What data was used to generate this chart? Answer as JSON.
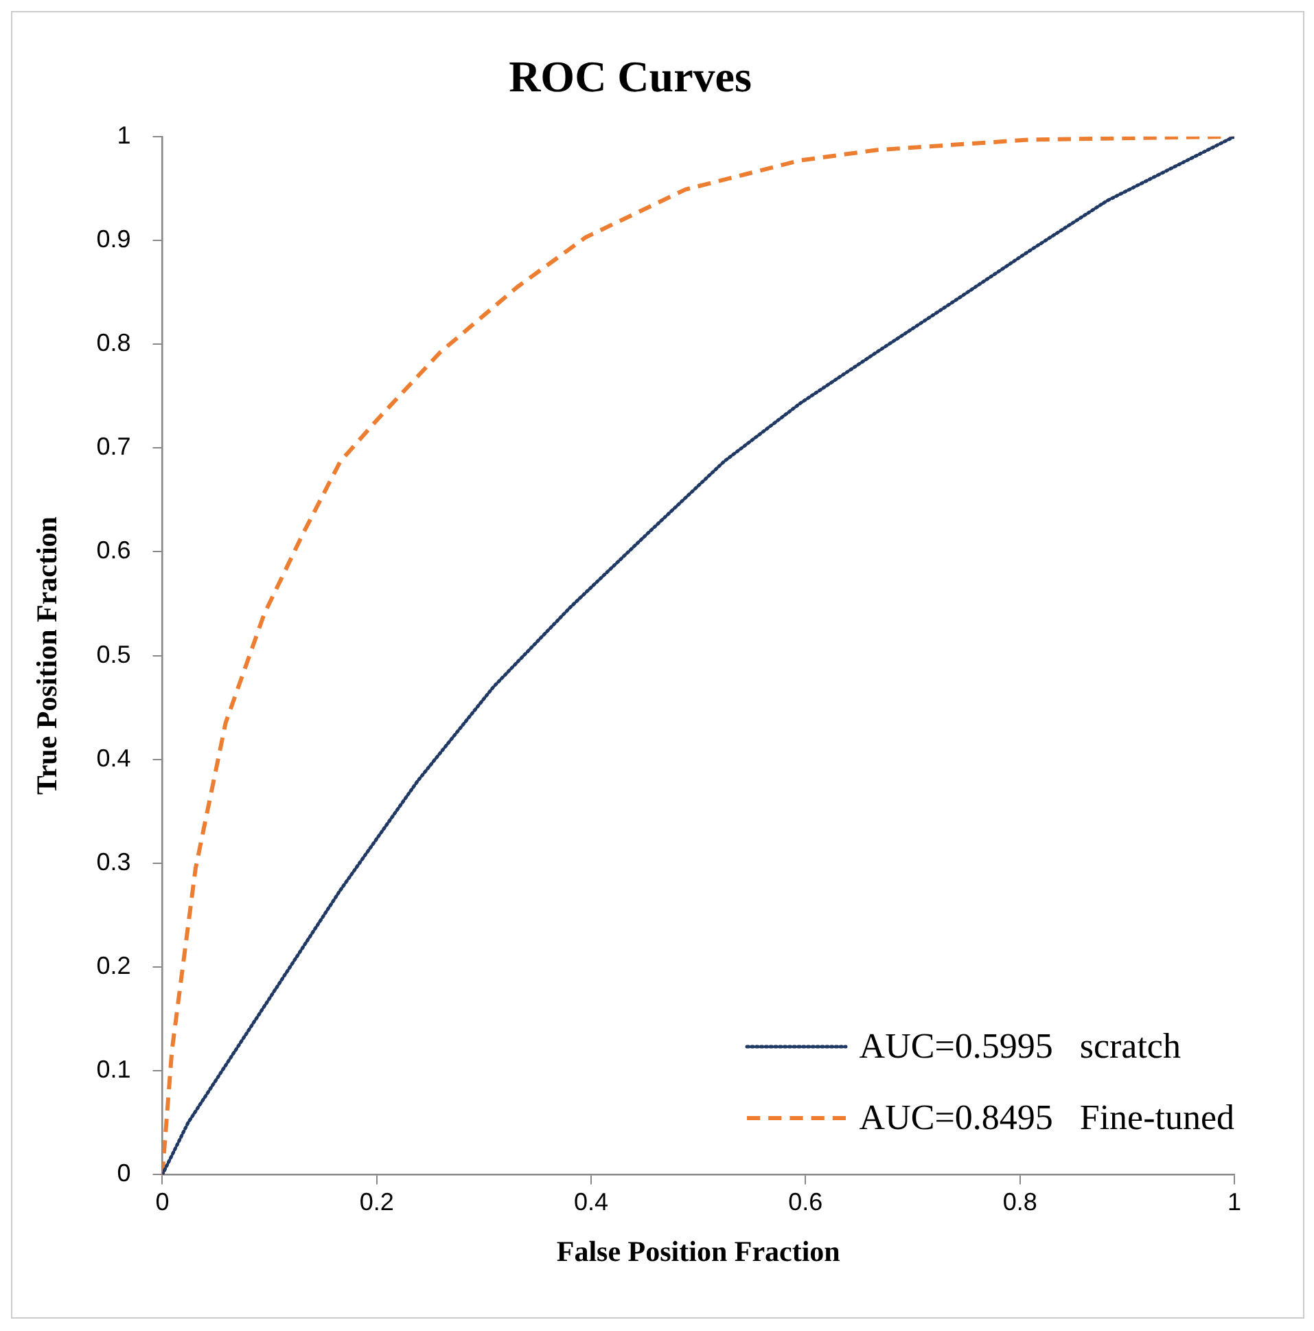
{
  "chart_data": {
    "type": "line",
    "title": "ROC Curves",
    "xlabel": "False Position Fraction",
    "ylabel": "True Position Fraction",
    "xlim": [
      0,
      1
    ],
    "xticks": [
      0,
      0.2,
      0.4,
      0.6,
      0.8,
      1
    ],
    "ylim": [
      0,
      1
    ],
    "yticks": [
      0,
      0.1,
      0.2,
      0.3,
      0.4,
      0.5,
      0.6,
      0.7,
      0.8,
      0.9,
      1
    ],
    "grid": false,
    "legend": "bottom right",
    "marker": "none",
    "series": [
      {
        "name": "AUC=0.5995   scratch",
        "color": "#203864",
        "line_style": "dotted",
        "x": [
          0,
          0.024,
          0.095,
          0.166,
          0.238,
          0.309,
          0.381,
          0.452,
          0.524,
          0.595,
          0.666,
          0.738,
          0.809,
          0.881,
          1
        ],
        "values": [
          0,
          0.05,
          0.162,
          0.274,
          0.379,
          0.47,
          0.547,
          0.617,
          0.687,
          0.743,
          0.792,
          0.841,
          0.89,
          0.938,
          1
        ]
      },
      {
        "name": "AUC=0.8495   Fine-tuned",
        "color": "#ed7d31",
        "line_style": "dashed",
        "x": [
          0,
          0.009,
          0.031,
          0.059,
          0.095,
          0.131,
          0.166,
          0.202,
          0.259,
          0.331,
          0.395,
          0.488,
          0.595,
          0.666,
          0.809,
          1
        ],
        "values": [
          0,
          0.12,
          0.295,
          0.435,
          0.54,
          0.617,
          0.687,
          0.729,
          0.792,
          0.855,
          0.903,
          0.949,
          0.977,
          0.987,
          0.997,
          1
        ]
      }
    ]
  }
}
